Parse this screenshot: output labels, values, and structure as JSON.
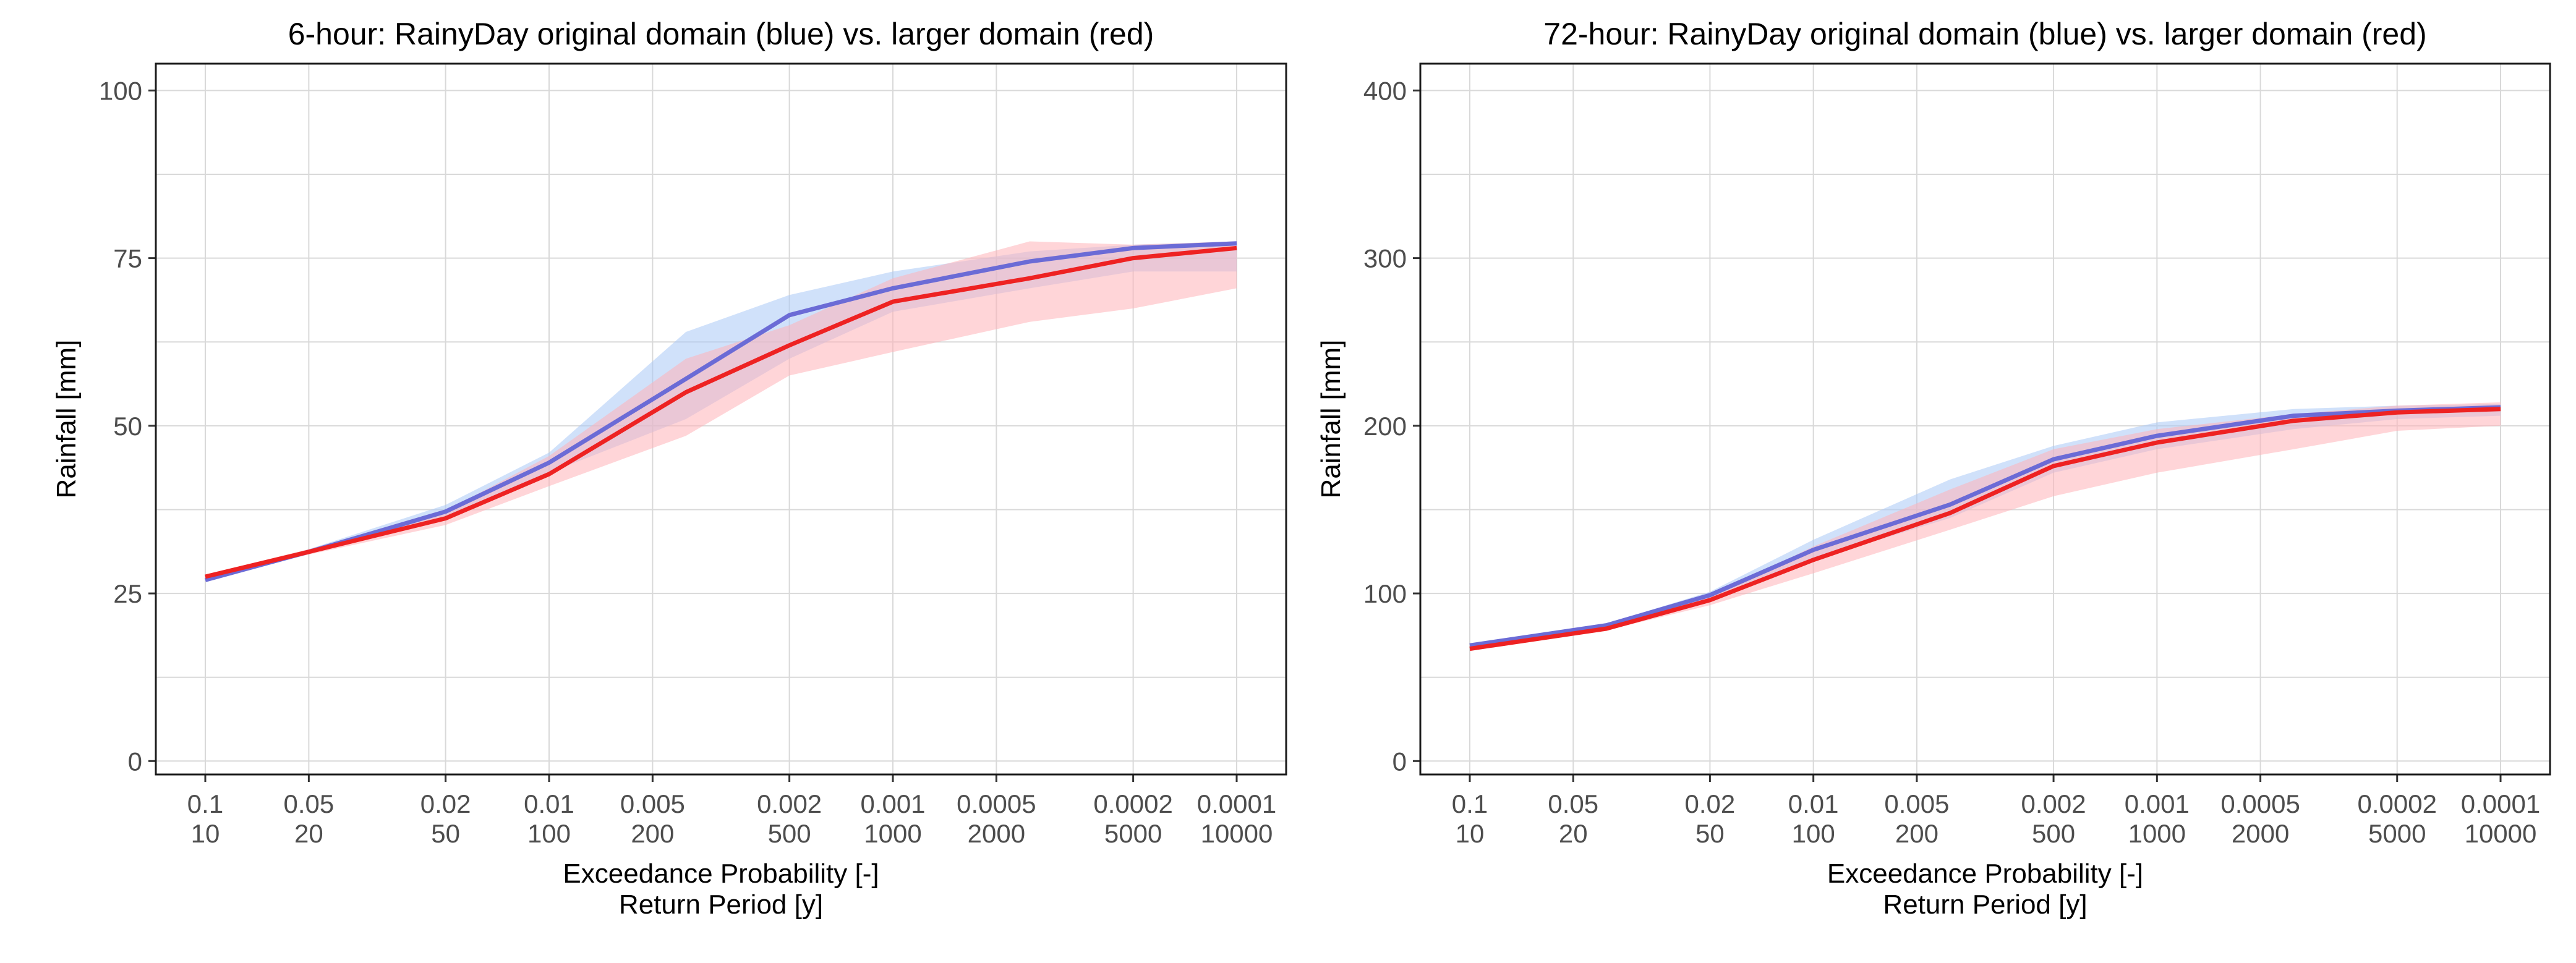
{
  "chart_data": [
    {
      "type": "line",
      "title": "6-hour: RainyDay original domain (blue) vs. larger domain (red)",
      "xlabel": "Exceedance Probability [-]",
      "xlabel2": "Return Period [y]",
      "ylabel": "Rainfall [mm]",
      "x_scale": "log return period",
      "xlim": [
        10,
        10000
      ],
      "ylim": [
        -2,
        104
      ],
      "yticks": [
        0,
        25,
        50,
        75,
        100
      ],
      "ytick_labels": [
        "0",
        "25",
        "50",
        "75",
        "100"
      ],
      "xticks": [
        10,
        20,
        50,
        100,
        200,
        500,
        1000,
        2000,
        5000,
        10000
      ],
      "xtick_labels_prob": [
        "0.1",
        "0.05",
        "0.02",
        "0.01",
        "0.005",
        "0.002",
        "0.001",
        "0.0005",
        "0.0002",
        "0.0001"
      ],
      "xtick_labels_period": [
        "10",
        "20",
        "50",
        "100",
        "200",
        "500",
        "1000",
        "2000",
        "5000",
        "10000"
      ],
      "grid": true,
      "series": [
        {
          "color": "#6b6bd6",
          "band_color": "#a9c8f5",
          "x": [
            10,
            20,
            50,
            100,
            250,
            500,
            1000,
            2500,
            5000,
            10000
          ],
          "values": [
            27.0,
            31.2,
            37.2,
            44.5,
            57.0,
            66.5,
            70.5,
            74.5,
            76.5,
            77.2
          ],
          "lower": [
            27.0,
            31.0,
            36.5,
            43.0,
            51.0,
            60.0,
            67.0,
            70.5,
            73.0,
            73.0
          ],
          "upper": [
            27.2,
            31.6,
            38.2,
            46.0,
            64.0,
            69.5,
            73.0,
            76.0,
            77.0,
            77.5
          ]
        },
        {
          "color": "#ee2222",
          "band_color": "#ffb3b8",
          "x": [
            10,
            20,
            50,
            100,
            250,
            500,
            1000,
            2500,
            5000,
            10000
          ],
          "values": [
            27.5,
            31.2,
            36.2,
            42.8,
            55.0,
            62.0,
            68.5,
            72.0,
            75.0,
            76.5
          ],
          "lower": [
            27.2,
            30.8,
            35.2,
            41.0,
            48.5,
            57.5,
            61.0,
            65.5,
            67.5,
            70.5
          ],
          "upper": [
            27.8,
            31.6,
            37.3,
            45.5,
            60.0,
            65.0,
            72.0,
            77.5,
            77.0,
            77.5
          ]
        }
      ]
    },
    {
      "type": "line",
      "title": "72-hour: RainyDay original domain (blue) vs. larger domain (red)",
      "xlabel": "Exceedance Probability [-]",
      "xlabel2": "Return Period [y]",
      "ylabel": "Rainfall [mm]",
      "x_scale": "log return period",
      "xlim": [
        10,
        10000
      ],
      "ylim": [
        -8,
        416
      ],
      "yticks": [
        0,
        100,
        200,
        300,
        400
      ],
      "ytick_labels": [
        "0",
        "100",
        "200",
        "300",
        "400"
      ],
      "xticks": [
        10,
        20,
        50,
        100,
        200,
        500,
        1000,
        2000,
        5000,
        10000
      ],
      "xtick_labels_prob": [
        "0.1",
        "0.05",
        "0.02",
        "0.01",
        "0.005",
        "0.002",
        "0.001",
        "0.0005",
        "0.0002",
        "0.0001"
      ],
      "xtick_labels_period": [
        "10",
        "20",
        "50",
        "100",
        "200",
        "500",
        "1000",
        "2000",
        "5000",
        "10000"
      ],
      "grid": true,
      "series": [
        {
          "color": "#6b6bd6",
          "band_color": "#a9c8f5",
          "x": [
            10,
            25,
            50,
            100,
            250,
            500,
            1000,
            2500,
            5000,
            10000
          ],
          "values": [
            69,
            81,
            99,
            126,
            153,
            180,
            194,
            206,
            209,
            211
          ],
          "lower": [
            68,
            80,
            97,
            120,
            145,
            172,
            186,
            198,
            204,
            206
          ],
          "upper": [
            70,
            82,
            101,
            132,
            168,
            188,
            202,
            210,
            212,
            213
          ]
        },
        {
          "color": "#ee2222",
          "band_color": "#ffb3b8",
          "x": [
            10,
            25,
            50,
            100,
            250,
            500,
            1000,
            2500,
            5000,
            10000
          ],
          "values": [
            67,
            79,
            96,
            120,
            148,
            176,
            190,
            203,
            208,
            210
          ],
          "lower": [
            66,
            78,
            93,
            112,
            138,
            158,
            172,
            186,
            197,
            200
          ],
          "upper": [
            68,
            80,
            98,
            128,
            162,
            186,
            198,
            207,
            212,
            214
          ]
        }
      ]
    }
  ]
}
